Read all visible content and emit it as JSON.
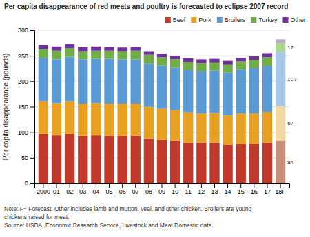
{
  "chart_data": {
    "type": "bar",
    "stacked": true,
    "title": "Per capita disappearance of red meats and poultry is forecasted to eclipse 2007 record",
    "y_label": "Per capita disappearance (pounds)",
    "categories": [
      "2000",
      "01",
      "02",
      "03",
      "04",
      "05",
      "06",
      "07",
      "08",
      "09",
      "10",
      "11",
      "12",
      "13",
      "14",
      "15",
      "16",
      "17",
      "18F"
    ],
    "series": [
      {
        "name": "Beef",
        "color": "#c0392b",
        "colors": [
          "#c0392b",
          "#c0392b",
          "#c0392b",
          "#c0392b",
          "#c0392b",
          "#c0392b",
          "#c0392b",
          "#c0392b",
          "#c0392b",
          "#c0392b",
          "#c0392b",
          "#c0392b",
          "#c0392b",
          "#c0392b",
          "#c0392b",
          "#c0392b",
          "#c0392b",
          "#c0392b",
          "#c8907a"
        ],
        "values": [
          97,
          94,
          97,
          93,
          94,
          93,
          93,
          93,
          88,
          85,
          84,
          80,
          80,
          80,
          76,
          77,
          78,
          80,
          84
        ]
      },
      {
        "name": "Pork",
        "color": "#e8a020",
        "colors": [
          "#e8a020",
          "#e8a020",
          "#e8a020",
          "#e8a020",
          "#e8a020",
          "#e8a020",
          "#e8a020",
          "#e8a020",
          "#e8a020",
          "#e8a020",
          "#e8a020",
          "#e8a020",
          "#e8a020",
          "#e8a020",
          "#e8a020",
          "#e8a020",
          "#e8a020",
          "#e8a020",
          "#f0d8a0"
        ],
        "values": [
          64,
          63,
          64,
          63,
          63,
          63,
          63,
          63,
          62,
          62,
          60,
          59,
          57,
          58,
          57,
          60,
          59,
          60,
          67
        ]
      },
      {
        "name": "Broilers",
        "color": "#5b9bd5",
        "colors": [
          "#5b9bd5",
          "#5b9bd5",
          "#5b9bd5",
          "#5b9bd5",
          "#5b9bd5",
          "#5b9bd5",
          "#5b9bd5",
          "#5b9bd5",
          "#5b9bd5",
          "#5b9bd5",
          "#5b9bd5",
          "#5b9bd5",
          "#5b9bd5",
          "#5b9bd5",
          "#5b9bd5",
          "#5b9bd5",
          "#5b9bd5",
          "#5b9bd5",
          "#a8c8e8"
        ],
        "values": [
          85,
          86,
          87,
          87,
          87,
          88,
          87,
          87,
          85,
          84,
          83,
          83,
          83,
          83,
          84,
          86,
          89,
          90,
          107
        ]
      },
      {
        "name": "Turkey",
        "color": "#70ad47",
        "colors": [
          "#70ad47",
          "#70ad47",
          "#70ad47",
          "#70ad47",
          "#70ad47",
          "#70ad47",
          "#70ad47",
          "#70ad47",
          "#70ad47",
          "#70ad47",
          "#70ad47",
          "#70ad47",
          "#70ad47",
          "#70ad47",
          "#70ad47",
          "#70ad47",
          "#70ad47",
          "#70ad47",
          "#a8d890"
        ],
        "values": [
          17,
          17,
          17,
          16,
          16,
          16,
          16,
          17,
          17,
          16,
          16,
          16,
          16,
          16,
          16,
          16,
          16,
          17,
          17
        ]
      },
      {
        "name": "Other",
        "color": "#7030a0",
        "colors": [
          "#7030a0",
          "#7030a0",
          "#7030a0",
          "#7030a0",
          "#7030a0",
          "#7030a0",
          "#7030a0",
          "#7030a0",
          "#7030a0",
          "#7030a0",
          "#7030a0",
          "#7030a0",
          "#7030a0",
          "#7030a0",
          "#7030a0",
          "#7030a0",
          "#7030a0",
          "#7030a0",
          "#c0a8c8"
        ],
        "values": [
          8,
          8,
          8,
          8,
          8,
          7,
          7,
          7,
          7,
          7,
          7,
          7,
          7,
          7,
          7,
          7,
          7,
          8,
          7
        ]
      }
    ],
    "annotations": [
      "84",
      "67",
      "107",
      "17"
    ],
    "notes": [
      "Note: F= Forecast. Other includes lamb and mutton, veal, and other chicken. Broilers are young",
      "chickens raised for meat.",
      "Source: USDA, Economic Research Service, Livestock and Meat Domestic data."
    ],
    "ylim": [
      0,
      300
    ],
    "yticks": [
      0,
      50,
      100,
      150,
      200,
      250,
      300
    ],
    "grid": true,
    "legend": "upper right"
  }
}
